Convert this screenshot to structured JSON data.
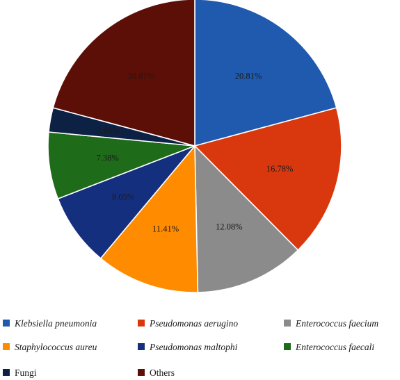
{
  "chart_data": {
    "type": "pie",
    "title": "",
    "start_angle_deg": 0,
    "direction": "clockwise",
    "slices": [
      {
        "name": "Klebsiella pneumonia",
        "value": 20.81,
        "label": "20.81%",
        "color": "#1f5aae",
        "italic": true
      },
      {
        "name": "Pseudomonas aerugino",
        "value": 16.78,
        "label": "16.78%",
        "color": "#d9380e",
        "italic": true
      },
      {
        "name": "Enterococcus faecium",
        "value": 12.08,
        "label": "12.08%",
        "color": "#8b8b8b",
        "italic": true
      },
      {
        "name": "Staphylococcus aureu",
        "value": 11.41,
        "label": "11.41%",
        "color": "#ff8c00",
        "italic": true
      },
      {
        "name": "Pseudomonas maltophi",
        "value": 8.05,
        "label": "8.05%",
        "color": "#142f7d",
        "italic": true
      },
      {
        "name": "Enterococcus faecali",
        "value": 7.38,
        "label": "7.38%",
        "color": "#1e6b1a",
        "italic": true
      },
      {
        "name": "Fungi",
        "value": 2.68,
        "label": "2.68%",
        "color": "#0d2145",
        "italic": false
      },
      {
        "name": "Others",
        "value": 20.81,
        "label": "20.81%",
        "color": "#5c0f06",
        "italic": false
      }
    ],
    "legend_position": "bottom",
    "legend_columns": 3
  }
}
